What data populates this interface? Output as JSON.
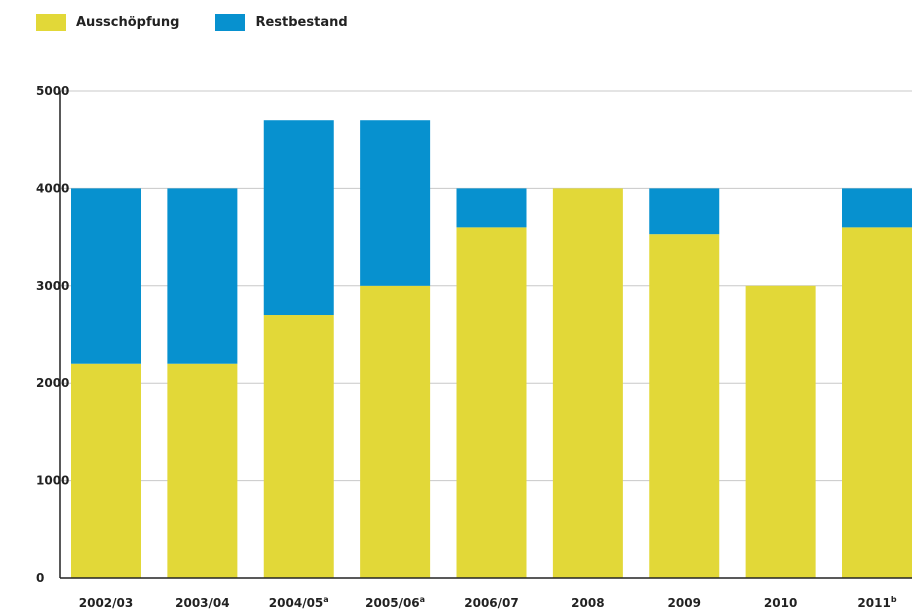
{
  "chart_data": {
    "type": "bar",
    "stacked": true,
    "categories": [
      "2002/03",
      "2003/04",
      "2004/05",
      "2005/06",
      "2006/07",
      "2008",
      "2009",
      "2010",
      "2011"
    ],
    "category_superscripts": [
      "",
      "",
      "a",
      "a",
      "",
      "",
      "",
      "",
      "b"
    ],
    "series": [
      {
        "name": "Ausschöpfung",
        "color": "#e2d838",
        "values": [
          2200,
          2200,
          2700,
          3000,
          3600,
          4000,
          3530,
          3000,
          3600
        ]
      },
      {
        "name": "Restbestand",
        "color": "#0791cf",
        "values": [
          1800,
          1800,
          2000,
          1700,
          400,
          0,
          470,
          0,
          400
        ]
      }
    ],
    "ylim": [
      0,
      5000
    ],
    "yticks": [
      0,
      1000,
      2000,
      3000,
      4000,
      5000
    ],
    "grid": true,
    "legend_position": "top-left"
  }
}
